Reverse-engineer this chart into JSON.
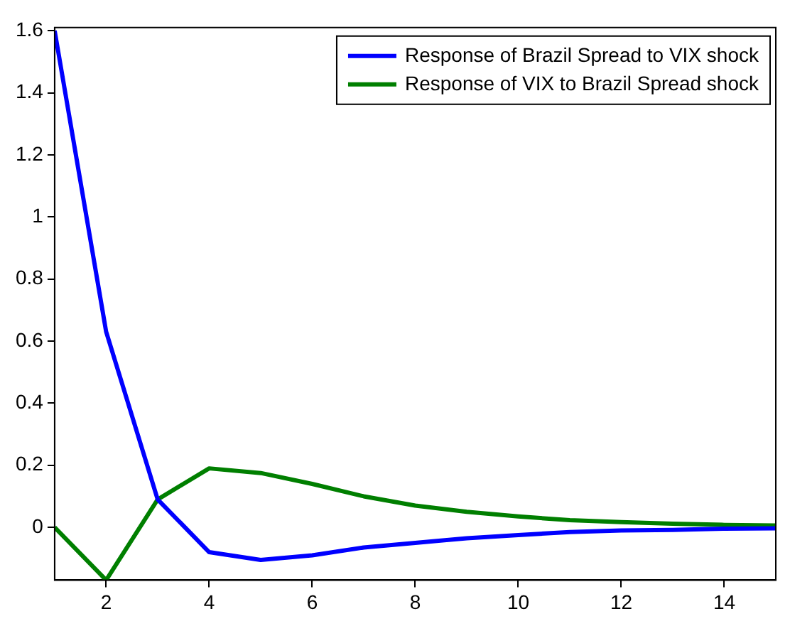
{
  "chart_data": {
    "type": "line",
    "x": [
      1,
      2,
      3,
      4,
      5,
      6,
      7,
      8,
      9,
      10,
      11,
      12,
      13,
      14,
      15
    ],
    "series": [
      {
        "name": "Response of Brazil Spread to VIX shock",
        "color": "#0000ff",
        "values": [
          1.6,
          0.63,
          0.09,
          -0.08,
          -0.105,
          -0.09,
          -0.065,
          -0.05,
          -0.035,
          -0.025,
          -0.015,
          -0.01,
          -0.008,
          -0.004,
          -0.003
        ]
      },
      {
        "name": "Response of VIX to Brazil Spread shock",
        "color": "#007f00",
        "values": [
          0,
          -0.17,
          0.09,
          0.19,
          0.175,
          0.14,
          0.1,
          0.07,
          0.05,
          0.035,
          0.023,
          0.017,
          0.012,
          0.008,
          0.006
        ]
      }
    ],
    "xlim": [
      1,
      15
    ],
    "xticks": [
      2,
      4,
      6,
      8,
      10,
      12,
      14
    ],
    "ylim": [
      -0.17,
      1.61
    ],
    "yticks": [
      0,
      0.2,
      0.4,
      0.6,
      0.8,
      1,
      1.2,
      1.4,
      1.6
    ],
    "grid": false,
    "legend": "top right",
    "marker": "none",
    "line_style": "solid"
  }
}
